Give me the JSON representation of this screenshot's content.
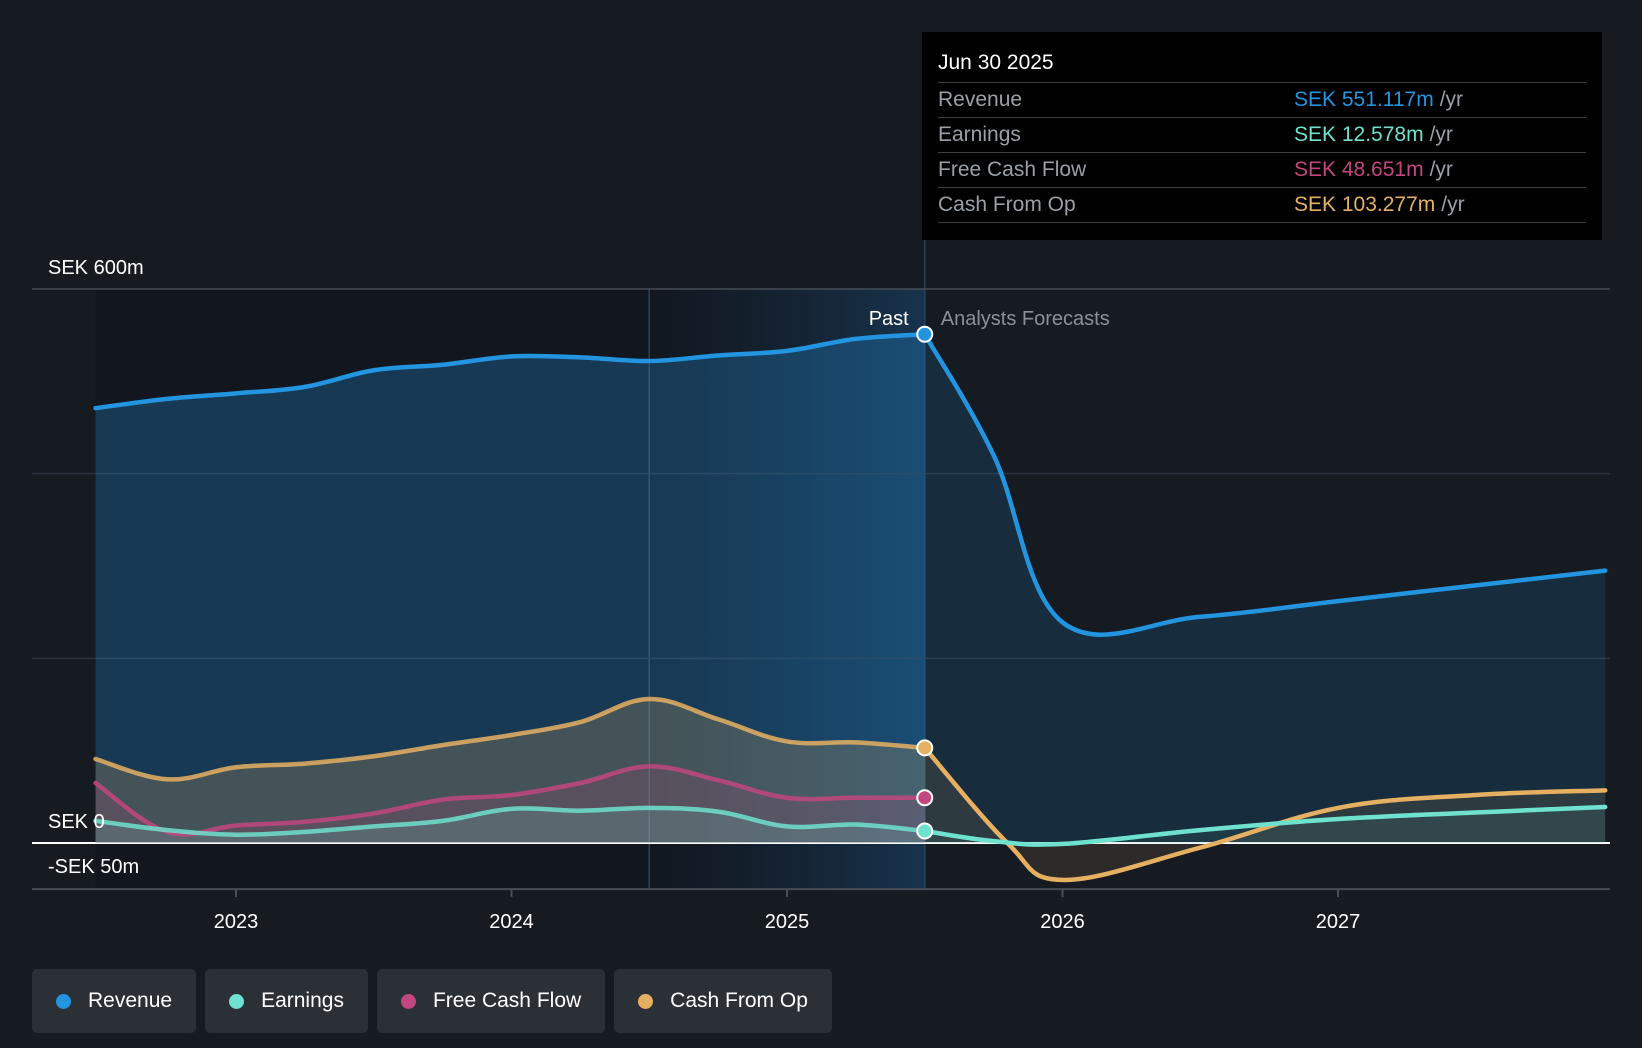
{
  "colors": {
    "revenue": "#2394df",
    "earnings": "#6ee2cf",
    "fcf": "#c2467f",
    "cfo": "#e6b062",
    "background": "#161b22",
    "tooltip_bg": "#000000"
  },
  "tooltip": {
    "date": "Jun 30 2025",
    "rows": [
      {
        "label": "Revenue",
        "value": "SEK 551.117m",
        "unit": "/yr",
        "key": "revenue"
      },
      {
        "label": "Earnings",
        "value": "SEK 12.578m",
        "unit": "/yr",
        "key": "earnings"
      },
      {
        "label": "Free Cash Flow",
        "value": "SEK 48.651m",
        "unit": "/yr",
        "key": "fcf"
      },
      {
        "label": "Cash From Op",
        "value": "SEK 103.277m",
        "unit": "/yr",
        "key": "cfo"
      }
    ]
  },
  "legend": [
    {
      "label": "Revenue",
      "key": "revenue"
    },
    {
      "label": "Earnings",
      "key": "earnings"
    },
    {
      "label": "Free Cash Flow",
      "key": "fcf"
    },
    {
      "label": "Cash From Op",
      "key": "cfo"
    }
  ],
  "chart_data": {
    "type": "line",
    "title": "",
    "xlabel": "",
    "ylabel": "",
    "currency": "SEK",
    "ylim": [
      -50,
      600
    ],
    "xlim": [
      2022.25,
      2027.97
    ],
    "y_ticks": [
      {
        "value": 600,
        "label": "SEK 600m"
      },
      {
        "value": 0,
        "label": "SEK 0"
      },
      {
        "value": -50,
        "label": "-SEK 50m"
      }
    ],
    "y_gridlines": [
      600,
      400,
      200,
      0
    ],
    "x_ticks": [
      {
        "value": 2023,
        "label": "2023"
      },
      {
        "value": 2024,
        "label": "2024"
      },
      {
        "value": 2025,
        "label": "2025"
      },
      {
        "value": 2026,
        "label": "2026"
      },
      {
        "value": 2027,
        "label": "2027"
      }
    ],
    "past_label": "Past",
    "forecast_label": "Analysts Forecasts",
    "past_end": 2025.5,
    "highlight_start": 2024.5,
    "series": [
      {
        "name": "Revenue",
        "key": "revenue",
        "points": [
          [
            2022.49,
            471
          ],
          [
            2022.75,
            481
          ],
          [
            2023.0,
            487
          ],
          [
            2023.25,
            494
          ],
          [
            2023.5,
            512
          ],
          [
            2023.75,
            518
          ],
          [
            2024.0,
            527
          ],
          [
            2024.25,
            526
          ],
          [
            2024.5,
            522
          ],
          [
            2024.75,
            528
          ],
          [
            2025.0,
            533
          ],
          [
            2025.25,
            546
          ],
          [
            2025.5,
            551
          ]
        ],
        "forecast": [
          [
            2025.5,
            551
          ],
          [
            2025.75,
            420
          ],
          [
            2026.0,
            239
          ],
          [
            2026.5,
            245
          ],
          [
            2027.0,
            262
          ],
          [
            2027.5,
            279
          ],
          [
            2027.97,
            295
          ]
        ]
      },
      {
        "name": "Earnings",
        "key": "earnings",
        "points": [
          [
            2022.49,
            24
          ],
          [
            2022.75,
            14
          ],
          [
            2023.0,
            9
          ],
          [
            2023.25,
            12
          ],
          [
            2023.5,
            18
          ],
          [
            2023.75,
            24
          ],
          [
            2024.0,
            37
          ],
          [
            2024.25,
            35
          ],
          [
            2024.5,
            38
          ],
          [
            2024.75,
            34
          ],
          [
            2025.0,
            18
          ],
          [
            2025.25,
            20
          ],
          [
            2025.5,
            13
          ]
        ],
        "forecast": [
          [
            2025.5,
            13
          ],
          [
            2025.75,
            2
          ],
          [
            2026.0,
            -1
          ],
          [
            2026.5,
            14
          ],
          [
            2027.0,
            26
          ],
          [
            2027.5,
            33
          ],
          [
            2027.97,
            39
          ]
        ]
      },
      {
        "name": "Free Cash Flow",
        "key": "fcf",
        "points": [
          [
            2022.49,
            65
          ],
          [
            2022.75,
            12
          ],
          [
            2023.0,
            19
          ],
          [
            2023.25,
            23
          ],
          [
            2023.5,
            32
          ],
          [
            2023.75,
            47
          ],
          [
            2024.0,
            52
          ],
          [
            2024.25,
            65
          ],
          [
            2024.5,
            83
          ],
          [
            2024.75,
            68
          ],
          [
            2025.0,
            49
          ],
          [
            2025.25,
            49
          ],
          [
            2025.5,
            49
          ]
        ],
        "forecast": []
      },
      {
        "name": "Cash From Op",
        "key": "cfo",
        "points": [
          [
            2022.49,
            91
          ],
          [
            2022.75,
            69
          ],
          [
            2023.0,
            82
          ],
          [
            2023.25,
            86
          ],
          [
            2023.5,
            94
          ],
          [
            2023.75,
            106
          ],
          [
            2024.0,
            117
          ],
          [
            2024.25,
            131
          ],
          [
            2024.5,
            156
          ],
          [
            2024.75,
            134
          ],
          [
            2025.0,
            110
          ],
          [
            2025.25,
            109
          ],
          [
            2025.5,
            103
          ]
        ],
        "forecast": [
          [
            2025.5,
            103
          ],
          [
            2025.8,
            0
          ],
          [
            2026.0,
            -40
          ],
          [
            2026.5,
            -5
          ],
          [
            2027.0,
            38
          ],
          [
            2027.5,
            52
          ],
          [
            2027.97,
            57
          ]
        ]
      }
    ],
    "tooltip_markers": [
      {
        "key": "revenue",
        "x": 2025.5,
        "y": 551
      },
      {
        "key": "cfo",
        "x": 2025.5,
        "y": 103
      },
      {
        "key": "fcf",
        "x": 2025.5,
        "y": 49
      },
      {
        "key": "earnings",
        "x": 2025.5,
        "y": 13
      }
    ],
    "legend_position": "bottom-left",
    "grid": true
  }
}
